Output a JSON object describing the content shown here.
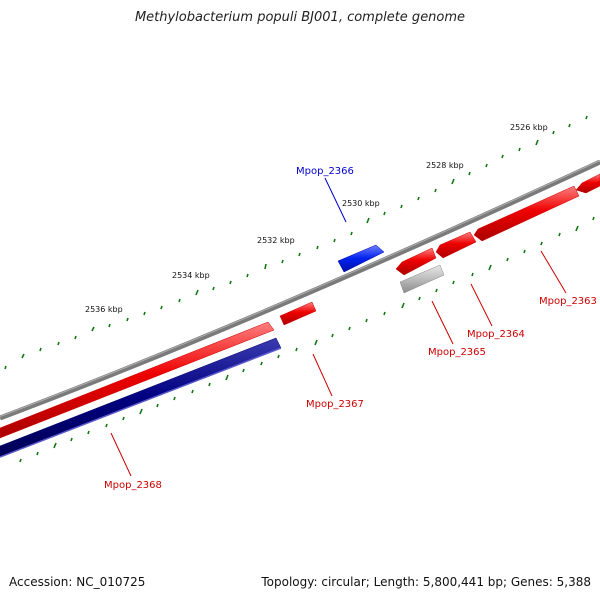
{
  "title": "Methylobacterium populi BJ001, complete genome",
  "footer": {
    "accession": "Accession: NC_010725",
    "summary": "Topology: circular; Length: 5,800,441 bp; Genes: 5,388"
  },
  "colors": {
    "forward_gene": "#ee0000",
    "reverse_gene": "#0000aa",
    "selected_gene": "#0022ee",
    "other_feature": "#b8b8b8",
    "backbone": "#7a7a7a",
    "ticks": "#117711",
    "label_red": "#cc0000",
    "label_blue": "#0000cc"
  },
  "ticks": [
    {
      "label": "2526 kbp"
    },
    {
      "label": "2528 kbp"
    },
    {
      "label": "2530 kbp"
    },
    {
      "label": "2532 kbp"
    },
    {
      "label": "2534 kbp"
    },
    {
      "label": "2536 kbp"
    }
  ],
  "genes": [
    {
      "name": "Mpop_2363"
    },
    {
      "name": "Mpop_2364"
    },
    {
      "name": "Mpop_2365"
    },
    {
      "name": "Mpop_2366"
    },
    {
      "name": "Mpop_2367"
    },
    {
      "name": "Mpop_2368"
    }
  ]
}
